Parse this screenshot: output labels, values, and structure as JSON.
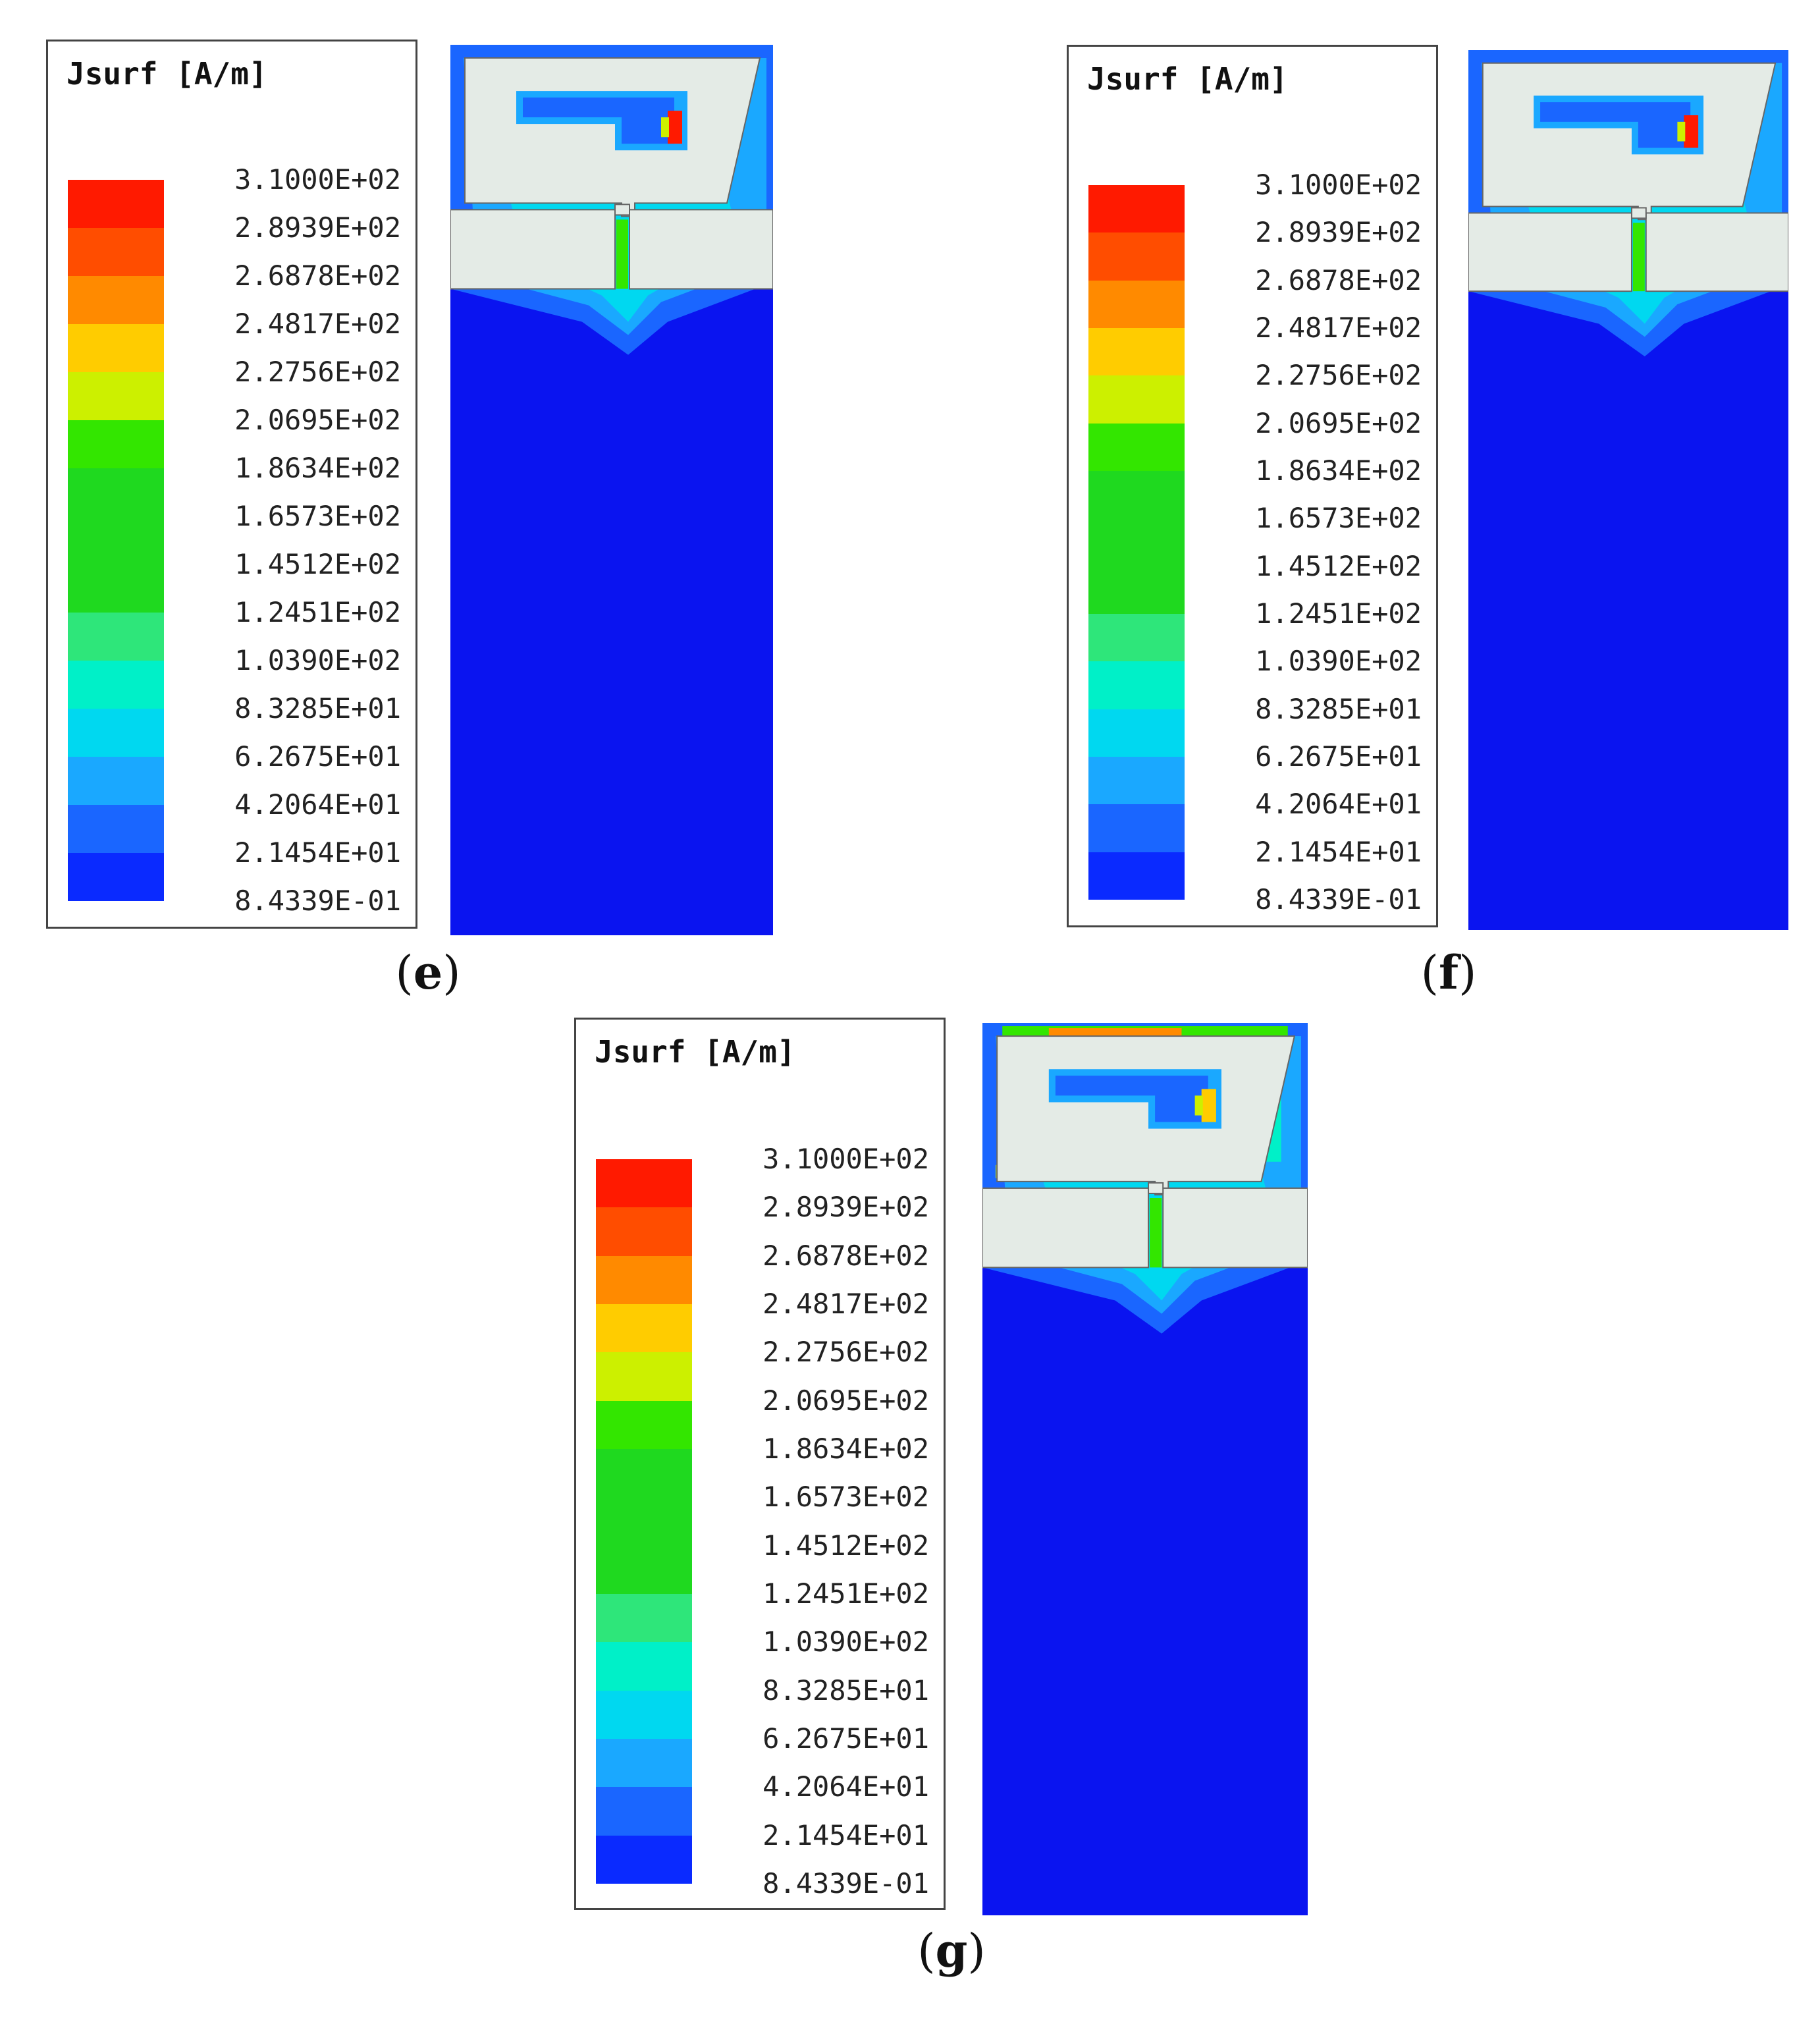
{
  "legend": {
    "title": "Jsurf [A/m]",
    "levels": [
      "3.1000E+02",
      "2.8939E+02",
      "2.6878E+02",
      "2.4817E+02",
      "2.2756E+02",
      "2.0695E+02",
      "1.8634E+02",
      "1.6573E+02",
      "1.4512E+02",
      "1.2451E+02",
      "1.0390E+02",
      "8.3285E+01",
      "6.2675E+01",
      "4.2064E+01",
      "2.1454E+01",
      "8.4339E-01"
    ],
    "band_colors": [
      "#ff1a00",
      "#ff4d00",
      "#ff8a00",
      "#ffcc00",
      "#ccf000",
      "#33e600",
      "#1fd91f",
      "#1fd91f",
      "#1fd91f",
      "#2ee67a",
      "#00f0c8",
      "#00d8f0",
      "#1aa8ff",
      "#1a66ff",
      "#0a2aff"
    ]
  },
  "panels": [
    {
      "label_open": "(",
      "label": "e",
      "label_close": ")"
    },
    {
      "label_open": "(",
      "label": "f",
      "label_close": ")"
    },
    {
      "label_open": "(",
      "label": "g",
      "label_close": ")"
    }
  ],
  "colors": {
    "background_field": "#0a14f0",
    "antenna_metal": "#e4ebe6",
    "border": "#444444"
  }
}
